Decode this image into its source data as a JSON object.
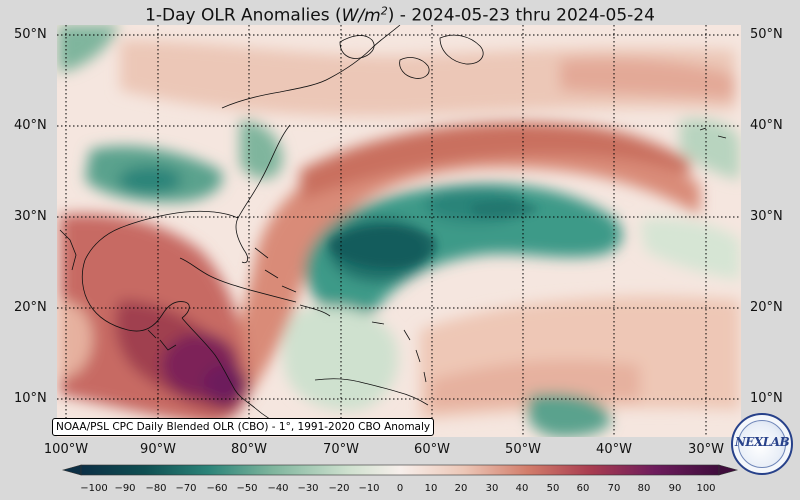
{
  "title": {
    "prefix": "1-Day OLR Anomalies (",
    "unit_base": "W/m",
    "unit_exp": "2",
    "suffix": ") - 2024-05-23 thru 2024-05-24"
  },
  "map": {
    "lon_labels": [
      "100°W",
      "90°W",
      "80°W",
      "70°W",
      "60°W",
      "50°W",
      "40°W",
      "30°W"
    ],
    "lat_labels": [
      "50°N",
      "40°N",
      "30°N",
      "20°N",
      "10°N"
    ],
    "grid_style": "dotted",
    "colors": {
      "background": "#d9d9d9",
      "neutral": "#f7efeb",
      "pos_light": "#ecc7b7",
      "pos_mid": "#d27d6b",
      "pos_strong": "#a83c50",
      "pos_max": "#6d1c5c",
      "neg_light": "#cfe1cf",
      "neg_mid": "#7fb59d",
      "neg_strong": "#2c8479",
      "neg_max": "#0f4f52"
    }
  },
  "source_note": "NOAA/PSL CPC Daily Blended OLR (CBO) - 1°, 1991-2020 CBO Anomaly",
  "colorbar": {
    "ticks": [
      "−100",
      "−90",
      "−80",
      "−70",
      "−60",
      "−50",
      "−40",
      "−30",
      "−20",
      "−10",
      "0",
      "10",
      "20",
      "30",
      "40",
      "50",
      "60",
      "70",
      "80",
      "90",
      "100"
    ]
  },
  "logo": {
    "text": "NEXLAB"
  }
}
